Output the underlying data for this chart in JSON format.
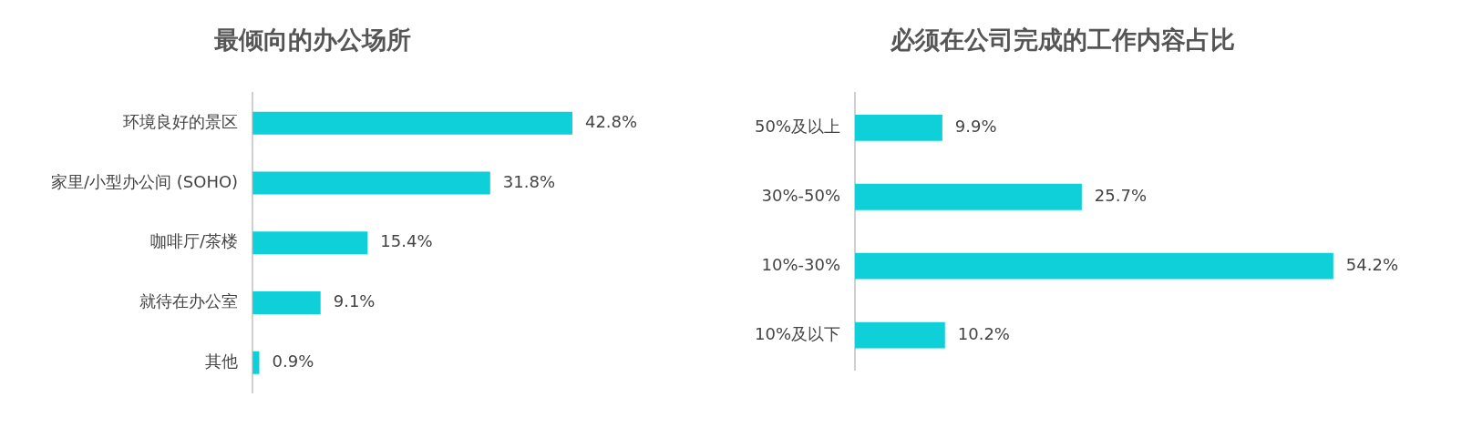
{
  "chart_data": [
    {
      "type": "bar",
      "orientation": "horizontal",
      "title": "最倾向的办公场所",
      "categories": [
        "环境良好的景区",
        "家里/小型办公间 (SOHO)",
        "咖啡厅/茶楼",
        "就待在办公室",
        "其他"
      ],
      "values": [
        42.8,
        31.8,
        15.4,
        9.1,
        0.9
      ],
      "value_labels": [
        "42.8%",
        "31.8%",
        "15.4%",
        "9.1%",
        "0.9%"
      ],
      "color": "#0fcfd8",
      "tick_labels": "y"
    },
    {
      "type": "bar",
      "orientation": "horizontal",
      "title": "必须在公司完成的工作内容占比",
      "categories": [
        "50%及以上",
        "30%-50%",
        "10%-30%",
        "10%及以下"
      ],
      "values": [
        9.9,
        25.7,
        54.2,
        10.2
      ],
      "value_labels": [
        "9.9%",
        "25.7%",
        "54.2%",
        "10.2%"
      ],
      "color": "#0fcfd8",
      "tick_labels": "y"
    }
  ]
}
